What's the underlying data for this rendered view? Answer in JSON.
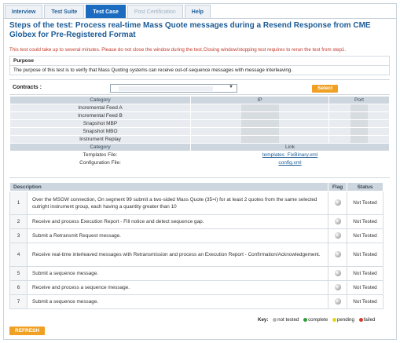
{
  "tabs": [
    {
      "label": "Interview",
      "state": "normal"
    },
    {
      "label": "Test Suite",
      "state": "normal"
    },
    {
      "label": "Test Case",
      "state": "active"
    },
    {
      "label": "Post Certification",
      "state": "disabled"
    },
    {
      "label": "Help",
      "state": "normal"
    }
  ],
  "page": {
    "title": "Steps of the test: Process real-time Mass Quote messages during a Resend Response from CME Globex for Pre-Registered Format",
    "warning": "This test could take up to several minutes. Please do not close the window during the test.Closing window/stopping test requires to rerun the test from step1."
  },
  "purpose": {
    "heading": "Purpose",
    "text": "The purpose of this test is to verify that Mass Quoting systems can receive out-of-sequence messages with message interleaving."
  },
  "contracts": {
    "label": "Contracts :",
    "select_button": "Select",
    "arrow": "▼"
  },
  "feeds": {
    "headers": [
      "Category",
      "IP",
      "Port"
    ],
    "rows": [
      "Incremental Feed A",
      "Incremental Feed B",
      "Snapshot MBP",
      "Snapshot MBO",
      "Instrument Replay"
    ]
  },
  "links": {
    "headers": [
      "Category",
      "Link"
    ],
    "rows": [
      {
        "category": "Templates File:",
        "link": "templates_FixBinary.xml"
      },
      {
        "category": "Configuration File:",
        "link": "config.xml"
      }
    ]
  },
  "steps": {
    "headers": {
      "description": "Description",
      "flag": "Flag",
      "status": "Status"
    },
    "rows": [
      {
        "num": "1",
        "desc": "Over the MSGW connection, On segment 99 submit a two-sided Mass Quote (35=i) for at least 2 quotes from the same selected outright instrument group, each having a quantity greater than 10",
        "status": "Not Tested"
      },
      {
        "num": "2",
        "desc": "Receive and process Execution Report - Fill notice and detect sequence gap.",
        "status": "Not Tested"
      },
      {
        "num": "3",
        "desc": "Submit a Retransmit Request message.",
        "status": "Not Tested"
      },
      {
        "num": "4",
        "desc": "Receive real-time interleaved messages with Retransmission and process an Execution Report - Confirmation/Acknowledgement.",
        "status": "Not Tested"
      },
      {
        "num": "5",
        "desc": "Submit a sequence message.",
        "status": "Not Tested"
      },
      {
        "num": "6",
        "desc": "Receive and process a sequence message.",
        "status": "Not Tested"
      },
      {
        "num": "7",
        "desc": "Submit a sequence message.",
        "status": "Not Tested"
      }
    ]
  },
  "key": {
    "label": "Key:",
    "items": [
      {
        "label": "not tested",
        "color": "#b5b5b5"
      },
      {
        "label": "complete",
        "color": "#2e9e3a"
      },
      {
        "label": "pending",
        "color": "#e8d51c"
      },
      {
        "label": "failed",
        "color": "#d83a2b"
      }
    ]
  },
  "refresh_label": "REFRESH",
  "colors": {
    "accent": "#1b6cc0",
    "title": "#1d5c96",
    "warning": "#c0392b",
    "button": "#f0a023"
  }
}
